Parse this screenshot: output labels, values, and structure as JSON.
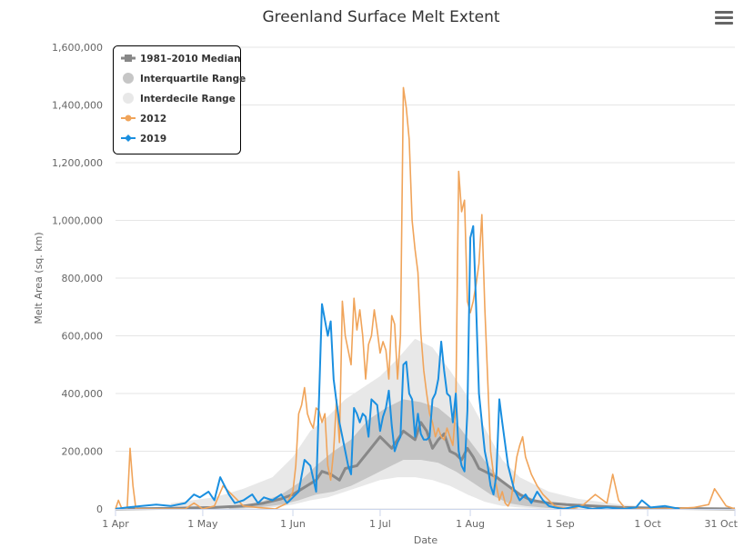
{
  "colors": {
    "median": "#888888",
    "interquartile": "#c6c6c6",
    "interdecile": "#e8e8e8",
    "y2012": "#f0a45a",
    "y2019": "#1a8fe0"
  },
  "menu": {
    "icon": "hamburger-menu-icon"
  },
  "chart_data": {
    "type": "line",
    "title": "Greenland Surface Melt Extent",
    "xlabel": "Date",
    "ylabel": "Melt Area (sq. km)",
    "x_unit": "day of year (1 Apr = 1)",
    "xlim": [
      1,
      214
    ],
    "ylim": [
      0,
      1600000
    ],
    "x_ticks": [
      {
        "day": 1,
        "label": "1 Apr"
      },
      {
        "day": 31,
        "label": "1 May"
      },
      {
        "day": 62,
        "label": "1 Jun"
      },
      {
        "day": 92,
        "label": "1 Jul"
      },
      {
        "day": 123,
        "label": "1 Aug"
      },
      {
        "day": 154,
        "label": "1 Sep"
      },
      {
        "day": 184,
        "label": "1 Oct"
      },
      {
        "day": 214,
        "label": "31 Oct"
      }
    ],
    "y_ticks": [
      {
        "value": 0,
        "label": "0"
      },
      {
        "value": 200000,
        "label": "200,000"
      },
      {
        "value": 400000,
        "label": "400,000"
      },
      {
        "value": 600000,
        "label": "600,000"
      },
      {
        "value": 800000,
        "label": "800,000"
      },
      {
        "value": 1000000,
        "label": "1,000,000"
      },
      {
        "value": 1200000,
        "label": "1,200,000"
      },
      {
        "value": 1400000,
        "label": "1,400,000"
      },
      {
        "value": 1600000,
        "label": "1,600,000"
      }
    ],
    "legend": {
      "placement": "top-left",
      "items": [
        {
          "label": "1981–2010 Median",
          "key": "median",
          "symbol": "line-square"
        },
        {
          "label": "Interquartile Range",
          "key": "interquartile",
          "symbol": "circle"
        },
        {
          "label": "Interdecile Range",
          "key": "interdecile",
          "symbol": "circle"
        },
        {
          "label": "2012",
          "key": "y2012",
          "symbol": "line-circle"
        },
        {
          "label": "2019",
          "key": "y2019",
          "symbol": "line-diamond"
        }
      ]
    },
    "series": [
      {
        "name": "1981–2010 Median",
        "key": "median",
        "x": [
          1,
          20,
          35,
          45,
          52,
          58,
          62,
          66,
          70,
          72,
          75,
          78,
          80,
          84,
          88,
          92,
          96,
          100,
          104,
          106,
          108,
          110,
          112,
          114,
          116,
          118,
          120,
          122,
          124,
          126,
          128,
          132,
          136,
          140,
          144,
          150,
          156,
          165,
          175,
          190,
          214
        ],
        "y": [
          0,
          2000,
          5000,
          10000,
          20000,
          35000,
          50000,
          75000,
          100000,
          130000,
          120000,
          100000,
          140000,
          150000,
          200000,
          250000,
          210000,
          270000,
          240000,
          300000,
          270000,
          210000,
          240000,
          260000,
          200000,
          190000,
          170000,
          210000,
          180000,
          140000,
          130000,
          110000,
          80000,
          50000,
          30000,
          20000,
          15000,
          10000,
          5000,
          2000,
          0
        ]
      },
      {
        "name": "Interquartile Range",
        "key": "interquartile",
        "x": [
          40,
          50,
          58,
          64,
          70,
          76,
          82,
          88,
          94,
          100,
          106,
          112,
          118,
          124,
          130,
          136,
          142,
          150,
          160
        ],
        "low": [
          0,
          5000,
          15000,
          30000,
          50000,
          60000,
          80000,
          110000,
          140000,
          170000,
          170000,
          160000,
          130000,
          90000,
          50000,
          20000,
          10000,
          3000,
          0
        ],
        "high": [
          5000,
          20000,
          50000,
          90000,
          150000,
          200000,
          240000,
          310000,
          350000,
          380000,
          370000,
          350000,
          300000,
          220000,
          140000,
          80000,
          45000,
          15000,
          2000
        ]
      },
      {
        "name": "Interdecile Range",
        "key": "interdecile",
        "x": [
          20,
          35,
          45,
          55,
          62,
          68,
          74,
          80,
          86,
          92,
          98,
          104,
          110,
          116,
          122,
          128,
          134,
          140,
          150,
          160,
          175,
          190
        ],
        "low": [
          0,
          0,
          2000,
          5000,
          15000,
          30000,
          40000,
          60000,
          80000,
          100000,
          110000,
          110000,
          100000,
          80000,
          50000,
          25000,
          10000,
          5000,
          0,
          0,
          0,
          0
        ],
        "high": [
          20000,
          40000,
          70000,
          110000,
          180000,
          270000,
          320000,
          380000,
          420000,
          460000,
          520000,
          590000,
          560000,
          480000,
          390000,
          280000,
          170000,
          110000,
          60000,
          35000,
          15000,
          5000
        ]
      },
      {
        "name": "2012",
        "key": "y2012",
        "x": [
          1,
          2,
          3,
          4,
          5,
          6,
          7,
          8,
          15,
          25,
          28,
          31,
          35,
          38,
          45,
          50,
          56,
          58,
          60,
          62,
          63,
          64,
          65,
          66,
          67,
          68,
          69,
          70,
          71,
          72,
          73,
          74,
          75,
          76,
          77,
          78,
          79,
          80,
          81,
          82,
          83,
          84,
          85,
          86,
          87,
          88,
          89,
          90,
          91,
          92,
          93,
          94,
          95,
          96,
          97,
          98,
          99,
          100,
          101,
          102,
          103,
          104,
          105,
          106,
          107,
          108,
          109,
          110,
          111,
          112,
          113,
          114,
          115,
          116,
          117,
          118,
          119,
          120,
          121,
          122,
          123,
          124,
          125,
          126,
          127,
          128,
          129,
          130,
          131,
          132,
          133,
          134,
          135,
          136,
          137,
          138,
          139,
          140,
          141,
          142,
          144,
          146,
          148,
          150,
          152,
          154,
          158,
          162,
          166,
          170,
          172,
          174,
          176,
          180,
          184,
          190,
          200,
          205,
          207,
          209,
          211,
          214
        ],
        "y": [
          0,
          30000,
          5000,
          0,
          0,
          210000,
          80000,
          0,
          0,
          0,
          20000,
          0,
          10000,
          80000,
          10000,
          5000,
          0,
          10000,
          20000,
          60000,
          150000,
          330000,
          360000,
          420000,
          330000,
          300000,
          280000,
          350000,
          340000,
          300000,
          330000,
          150000,
          100000,
          200000,
          380000,
          230000,
          720000,
          600000,
          550000,
          500000,
          730000,
          620000,
          690000,
          600000,
          450000,
          570000,
          600000,
          690000,
          620000,
          540000,
          580000,
          550000,
          450000,
          670000,
          640000,
          450000,
          600000,
          1460000,
          1390000,
          1280000,
          1000000,
          900000,
          820000,
          610000,
          480000,
          400000,
          330000,
          300000,
          250000,
          280000,
          250000,
          240000,
          280000,
          250000,
          220000,
          350000,
          1170000,
          1030000,
          1070000,
          720000,
          680000,
          720000,
          780000,
          850000,
          1020000,
          700000,
          450000,
          200000,
          120000,
          80000,
          30000,
          60000,
          20000,
          10000,
          30000,
          100000,
          180000,
          220000,
          250000,
          180000,
          120000,
          80000,
          50000,
          30000,
          10000,
          5000,
          0,
          15000,
          50000,
          20000,
          120000,
          30000,
          5000,
          0,
          0,
          0,
          5000,
          15000,
          70000,
          40000,
          10000,
          0
        ]
      },
      {
        "name": "2019",
        "key": "y2019",
        "x": [
          1,
          5,
          10,
          15,
          20,
          25,
          28,
          30,
          33,
          35,
          37,
          40,
          42,
          45,
          48,
          50,
          52,
          55,
          58,
          60,
          62,
          64,
          66,
          68,
          70,
          72,
          74,
          75,
          76,
          77,
          78,
          79,
          80,
          81,
          82,
          83,
          84,
          85,
          86,
          87,
          88,
          89,
          90,
          91,
          92,
          93,
          94,
          95,
          96,
          97,
          98,
          99,
          100,
          101,
          102,
          103,
          104,
          105,
          106,
          107,
          108,
          109,
          110,
          111,
          112,
          113,
          114,
          115,
          116,
          117,
          118,
          119,
          120,
          121,
          122,
          123,
          124,
          125,
          126,
          127,
          128,
          129,
          130,
          131,
          132,
          133,
          134,
          136,
          138,
          140,
          142,
          144,
          146,
          148,
          150,
          152,
          155,
          160,
          165,
          170,
          175,
          180,
          182,
          185,
          190,
          195
        ],
        "y": [
          0,
          5000,
          10000,
          15000,
          10000,
          20000,
          50000,
          40000,
          60000,
          30000,
          110000,
          50000,
          20000,
          30000,
          50000,
          20000,
          40000,
          30000,
          50000,
          20000,
          40000,
          60000,
          170000,
          150000,
          60000,
          710000,
          600000,
          650000,
          450000,
          370000,
          300000,
          250000,
          200000,
          150000,
          120000,
          350000,
          330000,
          300000,
          330000,
          320000,
          250000,
          380000,
          370000,
          360000,
          270000,
          320000,
          350000,
          410000,
          290000,
          200000,
          230000,
          250000,
          500000,
          510000,
          400000,
          380000,
          250000,
          330000,
          260000,
          240000,
          240000,
          250000,
          380000,
          400000,
          450000,
          580000,
          480000,
          400000,
          390000,
          300000,
          400000,
          200000,
          150000,
          130000,
          340000,
          940000,
          980000,
          700000,
          400000,
          300000,
          200000,
          150000,
          80000,
          50000,
          120000,
          380000,
          300000,
          150000,
          70000,
          30000,
          50000,
          20000,
          60000,
          30000,
          10000,
          5000,
          0,
          10000,
          0,
          5000,
          0,
          5000,
          30000,
          5000,
          10000,
          0
        ]
      }
    ]
  }
}
